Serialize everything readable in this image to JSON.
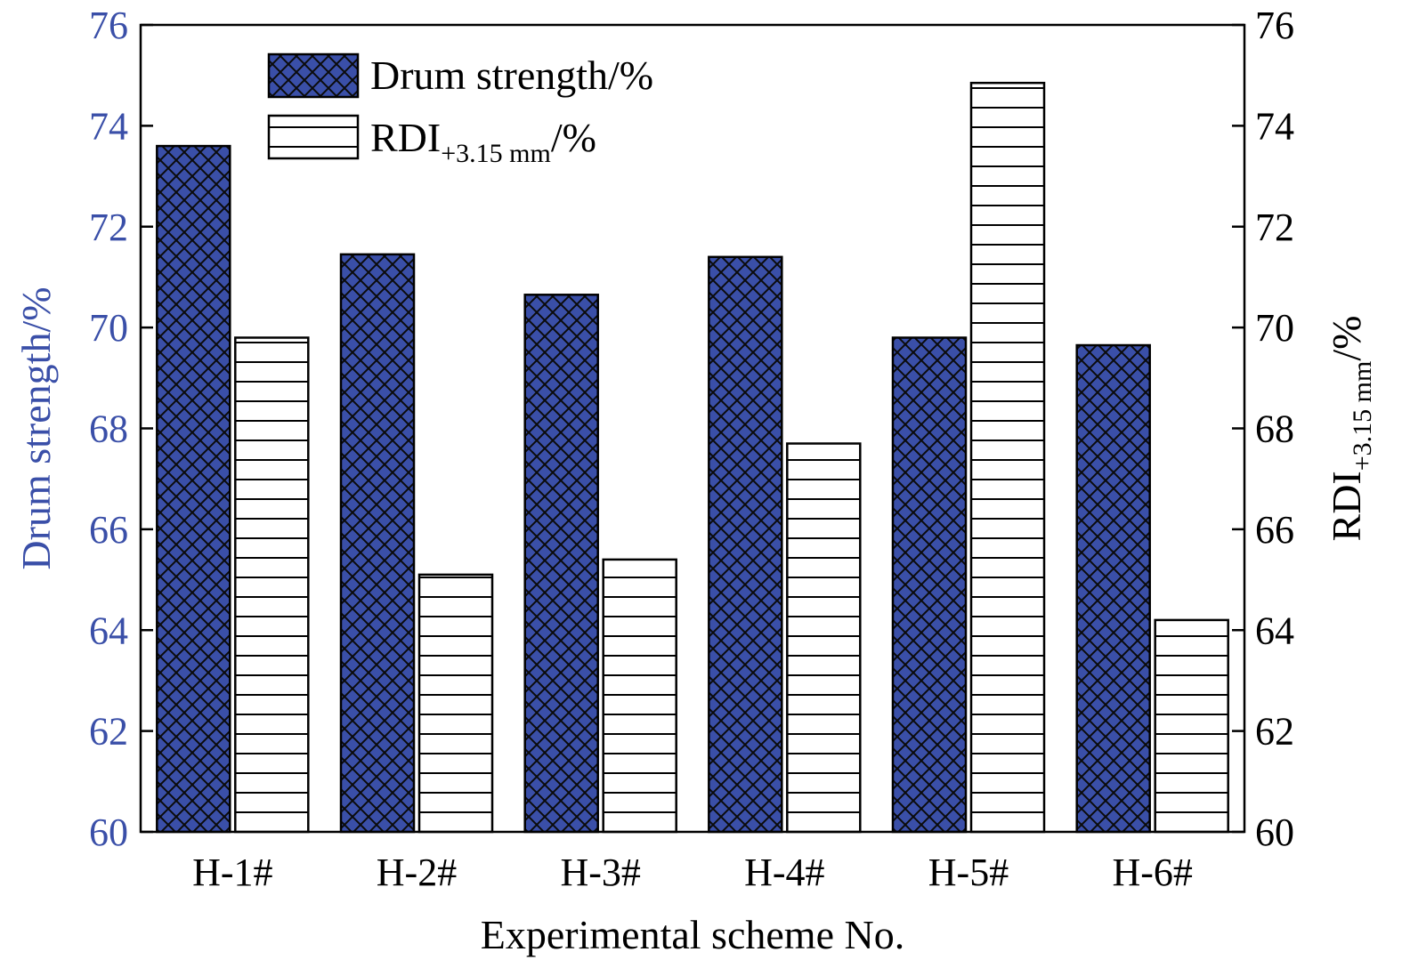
{
  "chart_data": {
    "type": "bar",
    "categories": [
      "H-1#",
      "H-2#",
      "H-3#",
      "H-4#",
      "H-5#",
      "H-6#"
    ],
    "series": [
      {
        "name": "Drum strength/%",
        "axis": "left",
        "pattern": "crosshatch",
        "fill": "#3a4fa8",
        "values": [
          73.6,
          71.45,
          70.65,
          71.4,
          69.8,
          69.65
        ]
      },
      {
        "name": "RDI+3.15 mm/%",
        "name_main": "RDI",
        "name_sub": "+3.15 mm",
        "name_suffix": "/%",
        "axis": "right",
        "pattern": "horizontal-lines",
        "fill": "#ffffff",
        "values": [
          69.8,
          65.1,
          65.4,
          67.7,
          74.85,
          64.2
        ]
      }
    ],
    "xlabel": "Experimental scheme No.",
    "ylabel_left": "Drum strength/%",
    "ylabel_right_main": "RDI",
    "ylabel_right_sub": "+3.15 mm",
    "ylabel_right_suffix": "/%",
    "ylim_left": [
      60,
      76
    ],
    "ylim_right": [
      60,
      76
    ],
    "yticks_left": [
      60,
      62,
      64,
      66,
      68,
      70,
      72,
      74,
      76
    ],
    "yticks_right": [
      60,
      62,
      64,
      66,
      68,
      70,
      72,
      74,
      76
    ],
    "grid": false,
    "legend_position": "top-left",
    "colors": {
      "left_axis": "#3a4fa8",
      "right_axis": "#000000",
      "drum_bar": "#3a4fa8"
    }
  }
}
